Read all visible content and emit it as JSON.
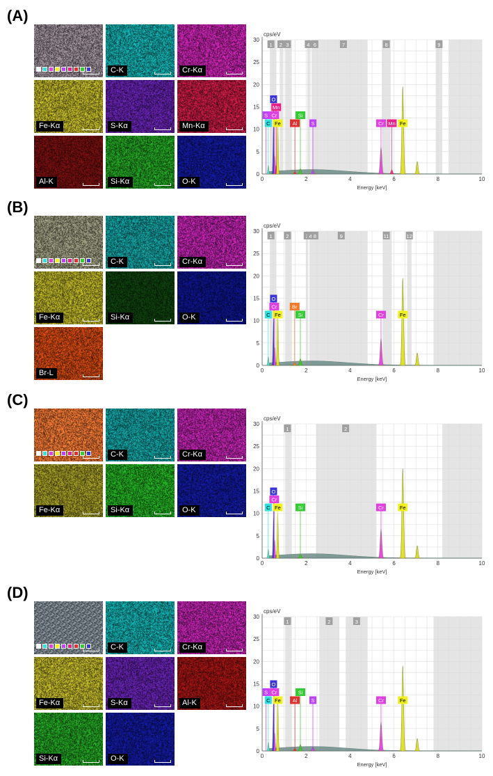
{
  "panels": [
    {
      "id": "A",
      "label": "(A)",
      "tiles": [
        {
          "name": "overlay",
          "label": "",
          "color": "#8a7f88"
        },
        {
          "name": "C-K",
          "label": "C-K",
          "color": "#0f9a9a"
        },
        {
          "name": "Cr-Ka",
          "label": "Cr-Kα",
          "color": "#b0209c"
        },
        {
          "name": "Fe-Ka",
          "label": "Fe-Kα",
          "color": "#a9a124"
        },
        {
          "name": "S-Ka",
          "label": "S-Kα",
          "color": "#5a1f9c"
        },
        {
          "name": "Mn-Ka",
          "label": "Mn-Kα",
          "color": "#b0183c"
        },
        {
          "name": "Al-K",
          "label": "Al-K",
          "color": "#6a0e0e"
        },
        {
          "name": "Si-Ka",
          "label": "Si-Kα",
          "color": "#1f8f1f"
        },
        {
          "name": "O-K",
          "label": "O-K",
          "color": "#10178c"
        }
      ],
      "spectrum": {
        "y_unit": "cps/eV",
        "x_label": "Energy [keV]",
        "roi_numbers": [
          "1",
          "2",
          "3",
          "4",
          "6",
          "7",
          "8",
          "9"
        ],
        "element_labels": [
          {
            "text": "O",
            "color": "#3a36d6"
          },
          {
            "text": "Mn",
            "color": "#e8208a"
          },
          {
            "text": "S",
            "color": "#c040ff"
          },
          {
            "text": "Cr",
            "color": "#e040e0"
          },
          {
            "text": "Si",
            "color": "#33cc33"
          },
          {
            "text": "C",
            "color": "#33e0e0"
          },
          {
            "text": "Fe",
            "color": "#f0f020"
          },
          {
            "text": "Al",
            "color": "#e03030"
          },
          {
            "text": "S",
            "color": "#c040ff"
          },
          {
            "text": "Cr",
            "color": "#e040e0"
          },
          {
            "text": "Mn",
            "color": "#e8208a"
          },
          {
            "text": "Fe",
            "color": "#f0f020"
          }
        ]
      }
    },
    {
      "id": "B",
      "label": "(B)",
      "tiles": [
        {
          "name": "overlay",
          "label": "",
          "color": "#8a8a72"
        },
        {
          "name": "C-K",
          "label": "C-K",
          "color": "#0f8e8e"
        },
        {
          "name": "Cr-Ka",
          "label": "Cr-Kα",
          "color": "#a8209a"
        },
        {
          "name": "Fe-Ka",
          "label": "Fe-Kα",
          "color": "#a49d22"
        },
        {
          "name": "Si-Ka",
          "label": "Si-Kα",
          "color": "#0d3a0d"
        },
        {
          "name": "O-K",
          "label": "O-K",
          "color": "#0c127a"
        },
        {
          "name": "Br-L",
          "label": "Br-L",
          "color": "#b8400e"
        }
      ],
      "spectrum": {
        "y_unit": "cps/eV",
        "x_label": "Energy [keV]",
        "roi_numbers": [
          "1",
          "2",
          "3",
          "4",
          "8",
          "9",
          "11",
          "12"
        ],
        "element_labels": [
          {
            "text": "O",
            "color": "#3a36d6"
          },
          {
            "text": "Cr",
            "color": "#e040e0"
          },
          {
            "text": "Br",
            "color": "#f07a2a"
          },
          {
            "text": "C",
            "color": "#33e0e0"
          },
          {
            "text": "Fe",
            "color": "#f0f020"
          },
          {
            "text": "Si",
            "color": "#33cc33"
          },
          {
            "text": "Cr",
            "color": "#e040e0"
          },
          {
            "text": "Fe",
            "color": "#f0f020"
          }
        ]
      }
    },
    {
      "id": "C",
      "label": "(C)",
      "tiles": [
        {
          "name": "overlay",
          "label": "",
          "color": "#d86a2e"
        },
        {
          "name": "C-K",
          "label": "C-K",
          "color": "#0f8e8e"
        },
        {
          "name": "Cr-Ka",
          "label": "Cr-Kα",
          "color": "#a8209a"
        },
        {
          "name": "Fe-Ka",
          "label": "Fe-Kα",
          "color": "#8e8820"
        },
        {
          "name": "Si-Ka",
          "label": "Si-Kα",
          "color": "#1f9a1f"
        },
        {
          "name": "O-K",
          "label": "O-K",
          "color": "#10178c"
        }
      ],
      "spectrum": {
        "y_unit": "cps/eV",
        "x_label": "Energy [keV]",
        "roi_numbers": [
          "1",
          "2"
        ],
        "element_labels": [
          {
            "text": "O",
            "color": "#3a36d6"
          },
          {
            "text": "Cr",
            "color": "#e040e0"
          },
          {
            "text": "C",
            "color": "#33e0e0"
          },
          {
            "text": "Fe",
            "color": "#f0f020"
          },
          {
            "text": "Si",
            "color": "#33cc33"
          },
          {
            "text": "Cr",
            "color": "#e040e0"
          },
          {
            "text": "Fe",
            "color": "#f0f020"
          }
        ]
      }
    },
    {
      "id": "D",
      "label": "(D)",
      "tiles": [
        {
          "name": "overlay",
          "label": "",
          "color": "#7f8a92"
        },
        {
          "name": "C-K",
          "label": "C-K",
          "color": "#0f9a9a"
        },
        {
          "name": "Cr-Ka",
          "label": "Cr-Kα",
          "color": "#a8209a"
        },
        {
          "name": "Fe-Ka",
          "label": "Fe-Kα",
          "color": "#a9a124"
        },
        {
          "name": "S-Ka",
          "label": "S-Kα",
          "color": "#5a1f9c"
        },
        {
          "name": "Al-K",
          "label": "Al-K",
          "color": "#8e1212"
        },
        {
          "name": "Si-Ka",
          "label": "Si-Kα",
          "color": "#1f8f1f"
        },
        {
          "name": "O-K",
          "label": "O-K",
          "color": "#10178c"
        }
      ],
      "spectrum": {
        "y_unit": "cps/eV",
        "x_label": "Energy [keV]",
        "roi_numbers": [
          "1",
          "2",
          "3"
        ],
        "element_labels": [
          {
            "text": "O",
            "color": "#3a36d6"
          },
          {
            "text": "S",
            "color": "#c040ff"
          },
          {
            "text": "Cr",
            "color": "#e040e0"
          },
          {
            "text": "Si",
            "color": "#33cc33"
          },
          {
            "text": "C",
            "color": "#33e0e0"
          },
          {
            "text": "Fe",
            "color": "#f0f020"
          },
          {
            "text": "Al",
            "color": "#e03030"
          },
          {
            "text": "S",
            "color": "#c040ff"
          },
          {
            "text": "Cr",
            "color": "#e040e0"
          },
          {
            "text": "Fe",
            "color": "#f0f020"
          }
        ]
      }
    }
  ],
  "chart_data": [
    {
      "type": "line",
      "panel": "A",
      "xlabel": "Energy [keV]",
      "ylabel": "cps/eV",
      "xlim": [
        0,
        10
      ],
      "ylim": [
        0,
        30
      ],
      "xticks": [
        0,
        2,
        4,
        6,
        8,
        10
      ],
      "yticks": [
        0,
        5,
        10,
        15,
        20,
        25,
        30
      ],
      "peaks": [
        {
          "element": "C",
          "x": 0.28,
          "y": 2
        },
        {
          "element": "O",
          "x": 0.52,
          "y": 11
        },
        {
          "element": "Cr",
          "x": 0.57,
          "y": 4
        },
        {
          "element": "Mn",
          "x": 0.64,
          "y": 2
        },
        {
          "element": "Fe",
          "x": 0.71,
          "y": 12
        },
        {
          "element": "Al",
          "x": 1.49,
          "y": 0.5
        },
        {
          "element": "Si",
          "x": 1.74,
          "y": 1.2
        },
        {
          "element": "S",
          "x": 2.31,
          "y": 1
        },
        {
          "element": "Cr",
          "x": 5.41,
          "y": 6
        },
        {
          "element": "Mn",
          "x": 5.9,
          "y": 1
        },
        {
          "element": "Fe",
          "x": 6.4,
          "y": 19.5
        },
        {
          "element": "Fe",
          "x": 7.06,
          "y": 2.8
        }
      ]
    },
    {
      "type": "line",
      "panel": "B",
      "xlabel": "Energy [keV]",
      "ylabel": "cps/eV",
      "xlim": [
        0,
        10
      ],
      "ylim": [
        0,
        30
      ],
      "xticks": [
        0,
        2,
        4,
        6,
        8,
        10
      ],
      "yticks": [
        0,
        5,
        10,
        15,
        20,
        25,
        30
      ],
      "peaks": [
        {
          "element": "C",
          "x": 0.28,
          "y": 2
        },
        {
          "element": "O",
          "x": 0.52,
          "y": 10
        },
        {
          "element": "Cr",
          "x": 0.57,
          "y": 4
        },
        {
          "element": "Fe",
          "x": 0.71,
          "y": 12
        },
        {
          "element": "Br",
          "x": 1.48,
          "y": 0.7
        },
        {
          "element": "Si",
          "x": 1.74,
          "y": 1.5
        },
        {
          "element": "Cr",
          "x": 5.41,
          "y": 6
        },
        {
          "element": "Fe",
          "x": 6.4,
          "y": 19.5
        },
        {
          "element": "Fe",
          "x": 7.06,
          "y": 2.8
        }
      ]
    },
    {
      "type": "line",
      "panel": "C",
      "xlabel": "Energy [keV]",
      "ylabel": "cps/eV",
      "xlim": [
        0,
        10
      ],
      "ylim": [
        0,
        30
      ],
      "xticks": [
        0,
        2,
        4,
        6,
        8,
        10
      ],
      "yticks": [
        0,
        5,
        10,
        15,
        20,
        25,
        30
      ],
      "peaks": [
        {
          "element": "C",
          "x": 0.28,
          "y": 2
        },
        {
          "element": "O",
          "x": 0.52,
          "y": 9
        },
        {
          "element": "Cr",
          "x": 0.57,
          "y": 4
        },
        {
          "element": "Fe",
          "x": 0.71,
          "y": 10
        },
        {
          "element": "Si",
          "x": 1.74,
          "y": 0.9
        },
        {
          "element": "Cr",
          "x": 5.41,
          "y": 6.5
        },
        {
          "element": "Fe",
          "x": 6.4,
          "y": 20
        },
        {
          "element": "Fe",
          "x": 7.06,
          "y": 2.8
        }
      ]
    },
    {
      "type": "line",
      "panel": "D",
      "xlabel": "Energy [keV]",
      "ylabel": "cps/eV",
      "xlim": [
        0,
        10
      ],
      "ylim": [
        0,
        30
      ],
      "xticks": [
        0,
        2,
        4,
        6,
        8,
        10
      ],
      "yticks": [
        0,
        5,
        10,
        15,
        20,
        25,
        30
      ],
      "peaks": [
        {
          "element": "C",
          "x": 0.28,
          "y": 2
        },
        {
          "element": "O",
          "x": 0.52,
          "y": 11
        },
        {
          "element": "Cr",
          "x": 0.57,
          "y": 4
        },
        {
          "element": "Fe",
          "x": 0.71,
          "y": 12
        },
        {
          "element": "Al",
          "x": 1.49,
          "y": 0.6
        },
        {
          "element": "Si",
          "x": 1.74,
          "y": 1.5
        },
        {
          "element": "S",
          "x": 2.31,
          "y": 0.9
        },
        {
          "element": "Cr",
          "x": 5.41,
          "y": 6.5
        },
        {
          "element": "Fe",
          "x": 6.4,
          "y": 19
        },
        {
          "element": "Fe",
          "x": 7.06,
          "y": 2.8
        }
      ]
    }
  ]
}
